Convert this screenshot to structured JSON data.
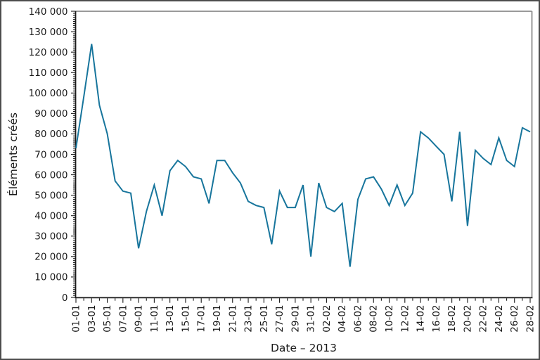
{
  "window": {
    "background": "#ffffff",
    "border_color": "#4d4d4d"
  },
  "chart_data": {
    "type": "line",
    "title": "",
    "xlabel": "Date – 2013",
    "ylabel": "Éléments créés",
    "legend": "none",
    "grid": false,
    "line_color": "#17759c",
    "axis_color": "#1a1a1a",
    "secondary_spine_color": "#8c8c8c",
    "ylim": [
      0,
      140000
    ],
    "y_minor_step": 1000,
    "y_tick_values": [
      0,
      10000,
      20000,
      30000,
      40000,
      50000,
      60000,
      70000,
      80000,
      90000,
      100000,
      110000,
      120000,
      130000,
      140000
    ],
    "y_tick_labels": [
      "0",
      "10 000",
      "20 000",
      "30 000",
      "40 000",
      "50 000",
      "60 000",
      "70 000",
      "80 000",
      "90 000",
      "100 000",
      "110 000",
      "120 000",
      "130 000",
      "140 000"
    ],
    "x_tick_labels": [
      "01-01",
      "03-01",
      "05-01",
      "07-01",
      "09-01",
      "11-01",
      "13-01",
      "15-01",
      "17-01",
      "19-01",
      "21-01",
      "23-01",
      "25-01",
      "27-01",
      "29-01",
      "31-01",
      "02-02",
      "04-02",
      "06-02",
      "08-02",
      "10-02",
      "12-02",
      "14-02",
      "16-02",
      "18-02",
      "20-02",
      "22-02",
      "24-02",
      "26-02",
      "28-02"
    ],
    "x": [
      "01-01",
      "02-01",
      "03-01",
      "04-01",
      "05-01",
      "06-01",
      "07-01",
      "08-01",
      "09-01",
      "10-01",
      "11-01",
      "12-01",
      "13-01",
      "14-01",
      "15-01",
      "16-01",
      "17-01",
      "18-01",
      "19-01",
      "20-01",
      "21-01",
      "22-01",
      "23-01",
      "24-01",
      "25-01",
      "26-01",
      "27-01",
      "28-01",
      "29-01",
      "30-01",
      "31-01",
      "01-02",
      "02-02",
      "03-02",
      "04-02",
      "05-02",
      "06-02",
      "07-02",
      "08-02",
      "09-02",
      "10-02",
      "11-02",
      "12-02",
      "13-02",
      "14-02",
      "15-02",
      "16-02",
      "17-02",
      "18-02",
      "19-02",
      "20-02",
      "21-02",
      "22-02",
      "23-02",
      "24-02",
      "25-02",
      "26-02",
      "27-02",
      "28-02"
    ],
    "values": [
      73000,
      98000,
      124000,
      94000,
      80000,
      57000,
      52000,
      51000,
      24000,
      42000,
      55000,
      40000,
      62000,
      67000,
      64000,
      59000,
      58000,
      46000,
      67000,
      67000,
      61000,
      56000,
      47000,
      45000,
      44000,
      26000,
      52000,
      44000,
      44000,
      55000,
      20000,
      56000,
      44000,
      42000,
      46000,
      15000,
      48000,
      58000,
      59000,
      53000,
      45000,
      55000,
      45000,
      51000,
      81000,
      78000,
      74000,
      70000,
      47000,
      81000,
      35000,
      72000,
      68000,
      65000,
      78000,
      67000,
      64000,
      83000,
      81000
    ]
  }
}
